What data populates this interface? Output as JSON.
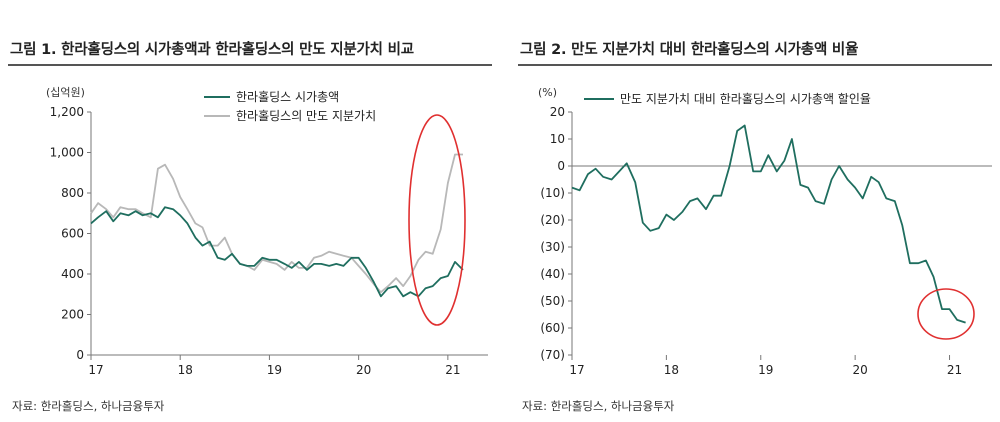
{
  "colors": {
    "green": "#1f6e5f",
    "gray": "#b8b8b8",
    "highlight": "#e03030",
    "axis": "#777777"
  },
  "chart_data": [
    {
      "type": "line",
      "title": "그림 1. 한라홀딩스의 시가총액과 한라홀딩스의 만도 지분가치 비교",
      "unit_label": "(십억원)",
      "source": "자료: 한라홀딩스, 하나금융투자",
      "x_start": 2017.0,
      "x_end": 2021.45,
      "xticks": [
        2017,
        2018,
        2019,
        2020,
        2021
      ],
      "xtick_labels": [
        "17",
        "18",
        "19",
        "20",
        "21"
      ],
      "ylim": [
        0,
        1200
      ],
      "yticks": [
        0,
        200,
        400,
        600,
        800,
        1000,
        1200
      ],
      "ytick_labels": [
        "0",
        "200",
        "400",
        "600",
        "800",
        "1,000",
        "1,200"
      ],
      "legend": "top-right",
      "series": [
        {
          "name": "한라홀딩스 시가총액",
          "color": "#1f6e5f",
          "x": [
            2017.0,
            2017.08,
            2017.17,
            2017.25,
            2017.33,
            2017.42,
            2017.5,
            2017.58,
            2017.67,
            2017.75,
            2017.83,
            2017.92,
            2018.0,
            2018.08,
            2018.17,
            2018.25,
            2018.33,
            2018.42,
            2018.5,
            2018.58,
            2018.67,
            2018.75,
            2018.83,
            2018.92,
            2019.0,
            2019.08,
            2019.17,
            2019.25,
            2019.33,
            2019.42,
            2019.5,
            2019.58,
            2019.67,
            2019.75,
            2019.83,
            2019.92,
            2020.0,
            2020.08,
            2020.17,
            2020.25,
            2020.33,
            2020.42,
            2020.5,
            2020.58,
            2020.67,
            2020.75,
            2020.83,
            2020.92,
            2021.0,
            2021.08,
            2021.17
          ],
          "values": [
            650,
            680,
            710,
            660,
            700,
            690,
            710,
            690,
            700,
            680,
            730,
            720,
            690,
            650,
            580,
            540,
            560,
            480,
            470,
            500,
            450,
            440,
            440,
            480,
            470,
            470,
            450,
            430,
            460,
            420,
            450,
            450,
            440,
            450,
            440,
            480,
            480,
            430,
            360,
            290,
            330,
            340,
            290,
            310,
            290,
            330,
            340,
            380,
            390,
            460,
            420
          ]
        },
        {
          "name": "한라홀딩스의 만도 지분가치",
          "color": "#b8b8b8",
          "x": [
            2017.0,
            2017.08,
            2017.17,
            2017.25,
            2017.33,
            2017.42,
            2017.5,
            2017.58,
            2017.67,
            2017.75,
            2017.83,
            2017.92,
            2018.0,
            2018.08,
            2018.17,
            2018.25,
            2018.33,
            2018.42,
            2018.5,
            2018.58,
            2018.67,
            2018.75,
            2018.83,
            2018.92,
            2019.0,
            2019.08,
            2019.17,
            2019.25,
            2019.33,
            2019.42,
            2019.5,
            2019.58,
            2019.67,
            2019.75,
            2019.83,
            2019.92,
            2020.0,
            2020.08,
            2020.17,
            2020.25,
            2020.33,
            2020.42,
            2020.5,
            2020.58,
            2020.67,
            2020.75,
            2020.83,
            2020.92,
            2021.0,
            2021.08,
            2021.17
          ],
          "values": [
            700,
            750,
            720,
            680,
            730,
            720,
            720,
            700,
            680,
            920,
            940,
            870,
            780,
            720,
            650,
            630,
            540,
            540,
            580,
            500,
            450,
            440,
            420,
            470,
            460,
            450,
            420,
            460,
            430,
            430,
            480,
            490,
            510,
            500,
            490,
            480,
            440,
            400,
            350,
            310,
            340,
            380,
            340,
            390,
            470,
            510,
            500,
            620,
            850,
            990,
            990
          ]
        }
      ],
      "annotations": [
        {
          "type": "ellipse",
          "note": "highlight of 2020-2021 divergence"
        }
      ]
    },
    {
      "type": "line",
      "title": "그림 2. 만도 지분가치 대비 한라홀딩스의 시가총액 비율",
      "unit_label": "(%)",
      "source": "자료: 한라홀딩스, 하나금융투자",
      "x_start": 2017.0,
      "x_end": 2021.45,
      "xticks": [
        2017,
        2018,
        2019,
        2020,
        2021
      ],
      "xtick_labels": [
        "17",
        "18",
        "19",
        "20",
        "21"
      ],
      "ylim": [
        -70,
        20
      ],
      "yticks": [
        20,
        10,
        0,
        -10,
        -20,
        -30,
        -40,
        -50,
        -60,
        -70
      ],
      "ytick_labels": [
        "20",
        "10",
        "0",
        "(10)",
        "(20)",
        "(30)",
        "(40)",
        "(50)",
        "(60)",
        "(70)"
      ],
      "legend": "top-left",
      "series": [
        {
          "name": "만도 지분가치 대비 한라홀딩스의 시가총액 할인율",
          "color": "#1f6e5f",
          "x": [
            2017.0,
            2017.08,
            2017.17,
            2017.25,
            2017.33,
            2017.42,
            2017.5,
            2017.58,
            2017.67,
            2017.75,
            2017.83,
            2017.92,
            2018.0,
            2018.08,
            2018.17,
            2018.25,
            2018.33,
            2018.42,
            2018.5,
            2018.58,
            2018.67,
            2018.75,
            2018.83,
            2018.92,
            2019.0,
            2019.08,
            2019.17,
            2019.25,
            2019.33,
            2019.42,
            2019.5,
            2019.58,
            2019.67,
            2019.75,
            2019.83,
            2019.92,
            2020.0,
            2020.08,
            2020.17,
            2020.25,
            2020.33,
            2020.42,
            2020.5,
            2020.58,
            2020.67,
            2020.75,
            2020.83,
            2020.92,
            2021.0,
            2021.08,
            2021.17
          ],
          "values": [
            -8,
            -9,
            -3,
            -1,
            -4,
            -5,
            -2,
            1,
            -6,
            -21,
            -24,
            -23,
            -18,
            -20,
            -17,
            -13,
            -12,
            -16,
            -11,
            -11,
            0,
            13,
            15,
            -2,
            -2,
            4,
            -2,
            2,
            10,
            -7,
            -8,
            -13,
            -14,
            -5,
            0,
            -5,
            -8,
            -12,
            -4,
            -6,
            -12,
            -13,
            -22,
            -36,
            -36,
            -35,
            -41,
            -53,
            -53,
            -57,
            -58
          ]
        }
      ],
      "annotations": [
        {
          "type": "ellipse",
          "note": "highlight of latest discount"
        }
      ]
    }
  ]
}
